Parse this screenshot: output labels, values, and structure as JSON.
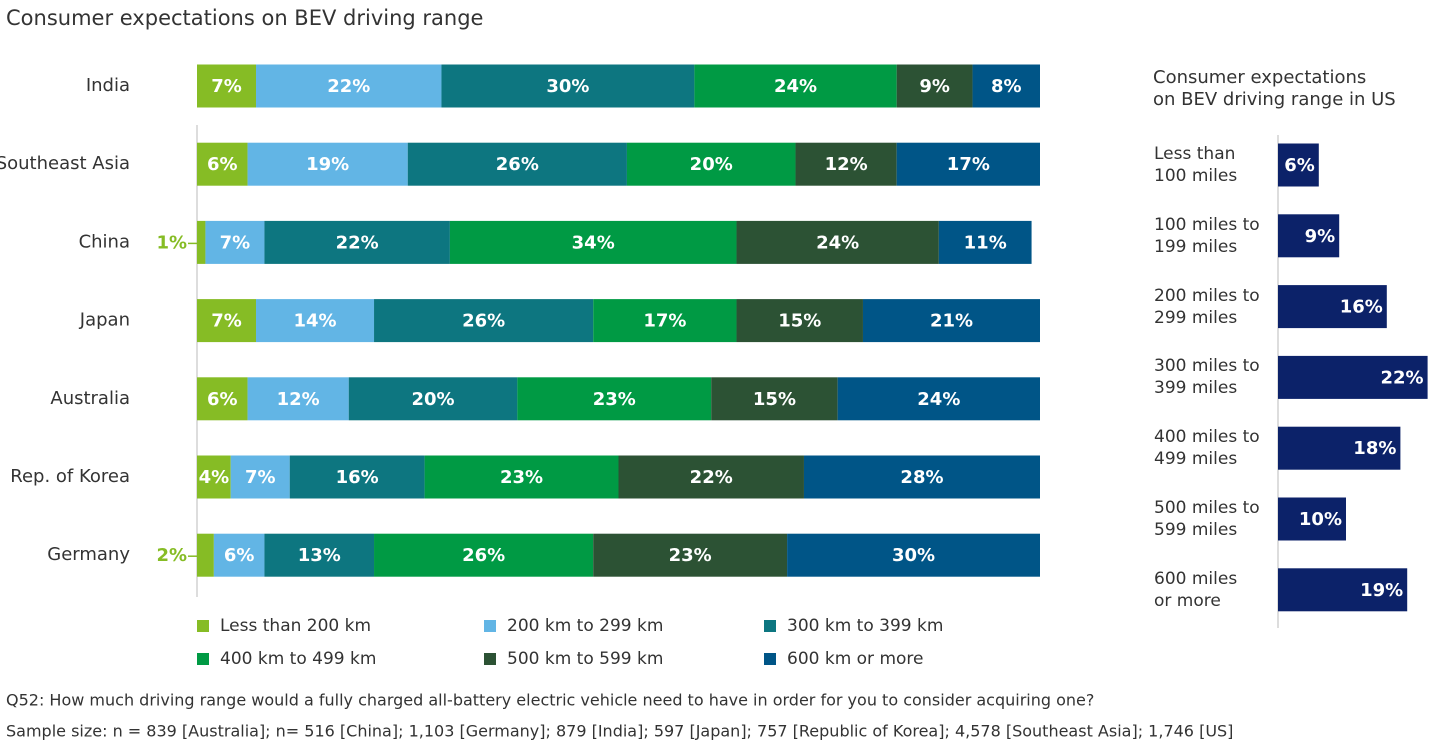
{
  "chart_data": [
    {
      "type": "stacked_bar",
      "title": "Consumer expectations on BEV driving range",
      "categories": [
        "India",
        "Southeast Asia",
        "China",
        "Japan",
        "Australia",
        "Rep. of Korea",
        "Germany"
      ],
      "xlim": [
        0,
        100
      ],
      "series": [
        {
          "name": "Less than 200 km",
          "color": "#86bc25",
          "values": [
            7,
            6,
            1,
            7,
            6,
            4,
            2
          ],
          "value_labels": [
            "7%",
            "6%",
            "1%",
            "7%",
            "6%",
            "4%",
            "2%"
          ]
        },
        {
          "name": "200 km to 299 km",
          "color": "#62b5e5",
          "values": [
            22,
            19,
            7,
            14,
            12,
            7,
            6
          ],
          "value_labels": [
            "22%",
            "19%",
            "7%",
            "14%",
            "12%",
            "7%",
            "6%"
          ]
        },
        {
          "name": "300 km to 399 km",
          "color": "#0d7680",
          "values": [
            30,
            26,
            22,
            26,
            20,
            16,
            13
          ],
          "value_labels": [
            "30%",
            "26%",
            "22%",
            "26%",
            "20%",
            "16%",
            "13%"
          ]
        },
        {
          "name": "400 km to 499 km",
          "color": "#009a44",
          "values": [
            24,
            20,
            34,
            17,
            23,
            23,
            26
          ],
          "value_labels": [
            "24%",
            "20%",
            "34%",
            "17%",
            "23%",
            "23%",
            "26%"
          ]
        },
        {
          "name": "500 km to 599 km",
          "color": "#2c5234",
          "values": [
            9,
            12,
            24,
            15,
            15,
            22,
            23
          ],
          "value_labels": [
            "9%",
            "12%",
            "24%",
            "15%",
            "15%",
            "22%",
            "23%"
          ]
        },
        {
          "name": "600 km or more",
          "color": "#005587",
          "values": [
            8,
            17,
            11,
            21,
            24,
            28,
            30
          ],
          "value_labels": [
            "8%",
            "17%",
            "11%",
            "21%",
            "24%",
            "28%",
            "30%"
          ]
        }
      ]
    },
    {
      "type": "bar",
      "title": "Consumer expectations\non BEV driving range in US",
      "categories": [
        "Less than\n100 miles",
        "100 miles to\n199 miles",
        "200 miles to\n299 miles",
        "300 miles to\n399 miles",
        "400 miles to\n499 miles",
        "500 miles to\n599 miles",
        "600 miles\nor more"
      ],
      "color": "#0c2269",
      "values": [
        6,
        9,
        16,
        22,
        18,
        10,
        19
      ],
      "value_labels": [
        "6%",
        "9%",
        "16%",
        "22%",
        "18%",
        "10%",
        "19%"
      ]
    }
  ],
  "footnotes": [
    "Q52: How much driving range would a fully charged all-battery electric vehicle need to have in order for you to consider acquiring one?",
    "Sample size: n = 839 [Australia]; n= 516 [China]; 1,103 [Germany]; 879 [India]; 597 [Japan]; 757 [Republic of Korea]; 4,578 [Southeast Asia]; 1,746 [US]"
  ]
}
